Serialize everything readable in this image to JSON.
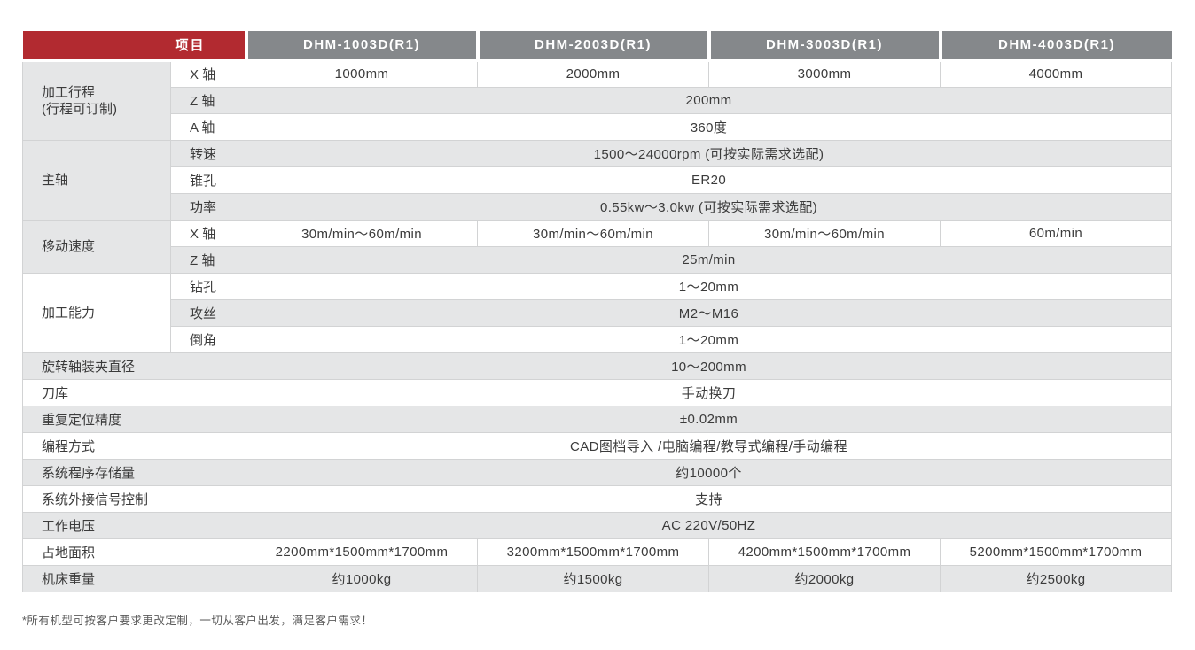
{
  "colors": {
    "accent_red": "#b22a30",
    "header_gray": "#85888b",
    "stripe_gray": "#e5e6e7"
  },
  "header": {
    "item_label": "项目",
    "models": [
      "DHM-1003D(R1)",
      "DHM-2003D(R1)",
      "DHM-3003D(R1)",
      "DHM-4003D(R1)"
    ]
  },
  "rows": [
    {
      "group": "加工行程",
      "group_note": "(行程可订制)",
      "sub": "X 轴",
      "values": [
        "1000mm",
        "2000mm",
        "3000mm",
        "4000mm"
      ]
    },
    {
      "sub": "Z 轴",
      "merged": "200mm"
    },
    {
      "sub": "A 轴",
      "merged": "360度"
    },
    {
      "group": "主轴",
      "sub": "转速",
      "merged": "1500～24000rpm (可按实际需求选配)"
    },
    {
      "sub": "锥孔",
      "merged": "ER20"
    },
    {
      "sub": "功率",
      "merged": "0.55kw～3.0kw (可按实际需求选配)"
    },
    {
      "group": "移动速度",
      "sub": "X 轴",
      "values": [
        "30m/min～60m/min",
        "30m/min～60m/min",
        "30m/min～60m/min",
        "60m/min"
      ]
    },
    {
      "sub": "Z 轴",
      "merged": "25m/min"
    },
    {
      "group": "加工能力",
      "sub": "钻孔",
      "merged": "1～20mm"
    },
    {
      "sub": "攻丝",
      "merged": "M2～M16"
    },
    {
      "sub": "倒角",
      "merged": "1～20mm"
    },
    {
      "label": "旋转轴装夹直径",
      "merged": "10～200mm"
    },
    {
      "label": "刀库",
      "merged": "手动换刀"
    },
    {
      "label": "重复定位精度",
      "merged": "±0.02mm"
    },
    {
      "label": "编程方式",
      "merged": "CAD图档导入 /电脑编程/教导式编程/手动编程"
    },
    {
      "label": "系统程序存储量",
      "merged": "约10000个"
    },
    {
      "label": "系统外接信号控制",
      "merged": "支持"
    },
    {
      "label": "工作电压",
      "merged": "AC 220V/50HZ"
    },
    {
      "label": "占地面积",
      "values": [
        "2200mm*1500mm*1700mm",
        "3200mm*1500mm*1700mm",
        "4200mm*1500mm*1700mm",
        "5200mm*1500mm*1700mm"
      ]
    },
    {
      "label": "机床重量",
      "values": [
        "约1000kg",
        "约1500kg",
        "约2000kg",
        "约2500kg"
      ]
    }
  ],
  "footnote": "*所有机型可按客户要求更改定制，一切从客户出发，满足客户需求！"
}
